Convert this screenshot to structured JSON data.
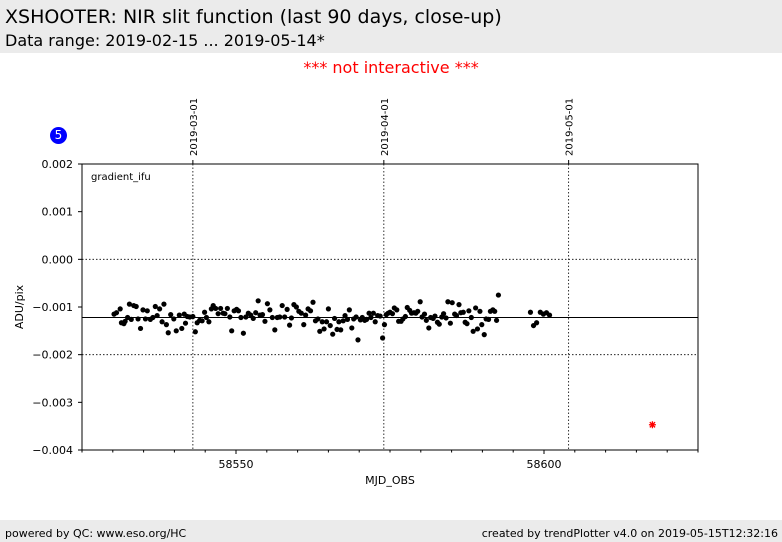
{
  "page": {
    "title": "XSHOOTER: NIR slit function (last 90 days, close-up)",
    "subtitle": "Data range: 2019-02-15 ... 2019-05-14*",
    "notice": "*** not interactive ***",
    "badge": "5",
    "footer_left": "powered by QC: www.eso.org/HC",
    "footer_right": "created by trendPlotter v4.0 on 2019-05-15T12:32:16"
  },
  "colors": {
    "points": "#000000",
    "outlier": "#ff0000",
    "badge": "#0000ff",
    "notice": "#ff0000",
    "header_bg": "#ebebeb"
  },
  "chart_data": {
    "type": "scatter",
    "panel_label": "gradient_ifu",
    "xlabel": "MJD_OBS",
    "ylabel": "ADU/pix",
    "xlim": [
      58525,
      58625
    ],
    "ylim": [
      -0.004,
      0.002
    ],
    "xticks": [
      58550,
      58600
    ],
    "yticks": [
      -0.004,
      -0.003,
      -0.002,
      -0.001,
      0.0,
      0.001,
      0.002
    ],
    "ytick_labels": [
      "−0.004",
      "−0.003",
      "−0.002",
      "−0.001",
      "0.000",
      "0.001",
      "0.002"
    ],
    "top_axis": [
      {
        "label": "2019-03-01",
        "mjd": 58543.0
      },
      {
        "label": "2019-04-01",
        "mjd": 58574.0
      },
      {
        "label": "2019-05-01",
        "mjd": 58604.0
      }
    ],
    "reference_line": -0.00122,
    "dashed_lines": [
      0.0,
      -0.002
    ],
    "outlier": {
      "x": 58617.6,
      "y": -0.00347
    },
    "series": [
      {
        "points": [
          [
            58530.2,
            -0.00115
          ],
          [
            58530.6,
            -0.00112
          ],
          [
            58531.2,
            -0.00104
          ],
          [
            58531.4,
            -0.00133
          ],
          [
            58531.8,
            -0.00135
          ],
          [
            58532.0,
            -0.0013
          ],
          [
            58532.4,
            -0.00122
          ],
          [
            58532.7,
            -0.00094
          ],
          [
            58533.0,
            -0.00126
          ],
          [
            58533.4,
            -0.00097
          ],
          [
            58533.8,
            -0.00099
          ],
          [
            58534.1,
            -0.00125
          ],
          [
            58534.5,
            -0.00145
          ],
          [
            58534.9,
            -0.00106
          ],
          [
            58535.3,
            -0.00125
          ],
          [
            58535.6,
            -0.00108
          ],
          [
            58536.1,
            -0.00126
          ],
          [
            58536.5,
            -0.00122
          ],
          [
            58536.9,
            -0.00099
          ],
          [
            58537.2,
            -0.00118
          ],
          [
            58537.6,
            -0.00104
          ],
          [
            58538.0,
            -0.00131
          ],
          [
            58538.3,
            -0.00094
          ],
          [
            58538.7,
            -0.00137
          ],
          [
            58539.0,
            -0.00154
          ],
          [
            58539.4,
            -0.00116
          ],
          [
            58539.9,
            -0.00125
          ],
          [
            58540.3,
            -0.0015
          ],
          [
            58540.8,
            -0.00117
          ],
          [
            58541.2,
            -0.00145
          ],
          [
            58541.6,
            -0.00115
          ],
          [
            58541.8,
            -0.00134
          ],
          [
            58542.1,
            -0.0012
          ],
          [
            58542.5,
            -0.00121
          ],
          [
            58543.0,
            -0.0012
          ],
          [
            58543.4,
            -0.00152
          ],
          [
            58543.7,
            -0.00133
          ],
          [
            58544.1,
            -0.00128
          ],
          [
            58544.5,
            -0.00129
          ],
          [
            58544.9,
            -0.00111
          ],
          [
            58545.2,
            -0.00122
          ],
          [
            58545.6,
            -0.00131
          ],
          [
            58546.0,
            -0.00104
          ],
          [
            58546.3,
            -0.00097
          ],
          [
            58546.7,
            -0.00103
          ],
          [
            58547.1,
            -0.00114
          ],
          [
            58547.5,
            -0.00103
          ],
          [
            58547.9,
            -0.00113
          ],
          [
            58548.2,
            -0.00114
          ],
          [
            58548.6,
            -0.00103
          ],
          [
            58549.0,
            -0.00121
          ],
          [
            58549.3,
            -0.0015
          ],
          [
            58549.7,
            -0.00108
          ],
          [
            58550.1,
            -0.00105
          ],
          [
            58550.4,
            -0.00108
          ],
          [
            58550.8,
            -0.00122
          ],
          [
            58551.2,
            -0.00155
          ],
          [
            58551.6,
            -0.00121
          ],
          [
            58552.0,
            -0.00113
          ],
          [
            58552.4,
            -0.00117
          ],
          [
            58552.8,
            -0.00124
          ],
          [
            58553.2,
            -0.00112
          ],
          [
            58553.6,
            -0.00087
          ],
          [
            58553.9,
            -0.00117
          ],
          [
            58554.3,
            -0.00116
          ],
          [
            58554.7,
            -0.0013
          ],
          [
            58555.1,
            -0.00093
          ],
          [
            58555.5,
            -0.00106
          ],
          [
            58555.9,
            -0.00122
          ],
          [
            58556.3,
            -0.00148
          ],
          [
            58556.7,
            -0.00122
          ],
          [
            58557.1,
            -0.00121
          ],
          [
            58557.5,
            -0.00097
          ],
          [
            58557.9,
            -0.00121
          ],
          [
            58558.3,
            -0.00105
          ],
          [
            58558.7,
            -0.00138
          ],
          [
            58559.0,
            -0.00123
          ],
          [
            58559.4,
            -0.00095
          ],
          [
            58559.8,
            -0.001
          ],
          [
            58560.2,
            -0.00109
          ],
          [
            58560.6,
            -0.00113
          ],
          [
            58561.0,
            -0.00137
          ],
          [
            58561.3,
            -0.00117
          ],
          [
            58561.7,
            -0.00104
          ],
          [
            58562.1,
            -0.00108
          ],
          [
            58562.5,
            -0.0009
          ],
          [
            58562.9,
            -0.00129
          ],
          [
            58563.3,
            -0.00125
          ],
          [
            58563.6,
            -0.00151
          ],
          [
            58564.0,
            -0.00131
          ],
          [
            58564.3,
            -0.00146
          ],
          [
            58564.7,
            -0.00131
          ],
          [
            58565.0,
            -0.00104
          ],
          [
            58565.3,
            -0.00139
          ],
          [
            58565.7,
            -0.00157
          ],
          [
            58566.0,
            -0.00124
          ],
          [
            58566.4,
            -0.00147
          ],
          [
            58566.7,
            -0.00131
          ],
          [
            58567.0,
            -0.00148
          ],
          [
            58567.4,
            -0.00129
          ],
          [
            58567.7,
            -0.00118
          ],
          [
            58568.1,
            -0.00126
          ],
          [
            58568.4,
            -0.00106
          ],
          [
            58568.8,
            -0.00144
          ],
          [
            58569.1,
            -0.00125
          ],
          [
            58569.5,
            -0.00121
          ],
          [
            58569.8,
            -0.00169
          ],
          [
            58570.2,
            -0.00127
          ],
          [
            58570.5,
            -0.00122
          ],
          [
            58570.9,
            -0.00128
          ],
          [
            58571.2,
            -0.00126
          ],
          [
            58571.6,
            -0.00113
          ],
          [
            58571.9,
            -0.00122
          ],
          [
            58572.3,
            -0.00113
          ],
          [
            58572.6,
            -0.00131
          ],
          [
            58573.0,
            -0.00118
          ],
          [
            58573.4,
            -0.00119
          ],
          [
            58573.8,
            -0.00165
          ],
          [
            58574.1,
            -0.00137
          ],
          [
            58574.4,
            -0.00116
          ],
          [
            58574.7,
            -0.00113
          ],
          [
            58575.0,
            -0.00111
          ],
          [
            58575.4,
            -0.00114
          ],
          [
            58575.7,
            -0.00102
          ],
          [
            58576.1,
            -0.00106
          ],
          [
            58576.4,
            -0.0013
          ],
          [
            58576.8,
            -0.0013
          ],
          [
            58577.1,
            -0.00125
          ],
          [
            58577.5,
            -0.0012
          ],
          [
            58577.8,
            -0.00101
          ],
          [
            58578.2,
            -0.00107
          ],
          [
            58578.5,
            -0.00113
          ],
          [
            58578.9,
            -0.00112
          ],
          [
            58579.2,
            -0.00113
          ],
          [
            58579.5,
            -0.00109
          ],
          [
            58579.9,
            -0.00089
          ],
          [
            58580.2,
            -0.00121
          ],
          [
            58580.6,
            -0.00115
          ],
          [
            58580.9,
            -0.00128
          ],
          [
            58581.3,
            -0.00144
          ],
          [
            58581.6,
            -0.00122
          ],
          [
            58582.0,
            -0.00124
          ],
          [
            58582.3,
            -0.00119
          ],
          [
            58582.7,
            -0.00132
          ],
          [
            58583.0,
            -0.00136
          ],
          [
            58583.4,
            -0.00121
          ],
          [
            58583.7,
            -0.00114
          ],
          [
            58584.1,
            -0.00123
          ],
          [
            58584.4,
            -0.00089
          ],
          [
            58584.8,
            -0.00134
          ],
          [
            58585.1,
            -0.00091
          ],
          [
            58585.5,
            -0.00115
          ],
          [
            58585.8,
            -0.00118
          ],
          [
            58586.2,
            -0.00095
          ],
          [
            58586.5,
            -0.00112
          ],
          [
            58586.9,
            -0.00111
          ],
          [
            58587.2,
            -0.00132
          ],
          [
            58587.5,
            -0.00135
          ],
          [
            58587.8,
            -0.00108
          ],
          [
            58588.2,
            -0.00122
          ],
          [
            58588.5,
            -0.00151
          ],
          [
            58588.9,
            -0.00102
          ],
          [
            58589.2,
            -0.00146
          ],
          [
            58589.6,
            -0.00109
          ],
          [
            58589.9,
            -0.00137
          ],
          [
            58590.3,
            -0.00158
          ],
          [
            58590.6,
            -0.00125
          ],
          [
            58591.0,
            -0.00126
          ],
          [
            58591.3,
            -0.00109
          ],
          [
            58591.7,
            -0.00106
          ],
          [
            58592.0,
            -0.00109
          ],
          [
            58592.3,
            -0.00128
          ],
          [
            58592.6,
            -0.00075
          ],
          [
            58597.8,
            -0.00111
          ],
          [
            58598.3,
            -0.00139
          ],
          [
            58598.8,
            -0.00133
          ],
          [
            58599.4,
            -0.00111
          ],
          [
            58599.9,
            -0.00115
          ],
          [
            58600.4,
            -0.00112
          ],
          [
            58600.9,
            -0.00117
          ]
        ]
      }
    ]
  }
}
